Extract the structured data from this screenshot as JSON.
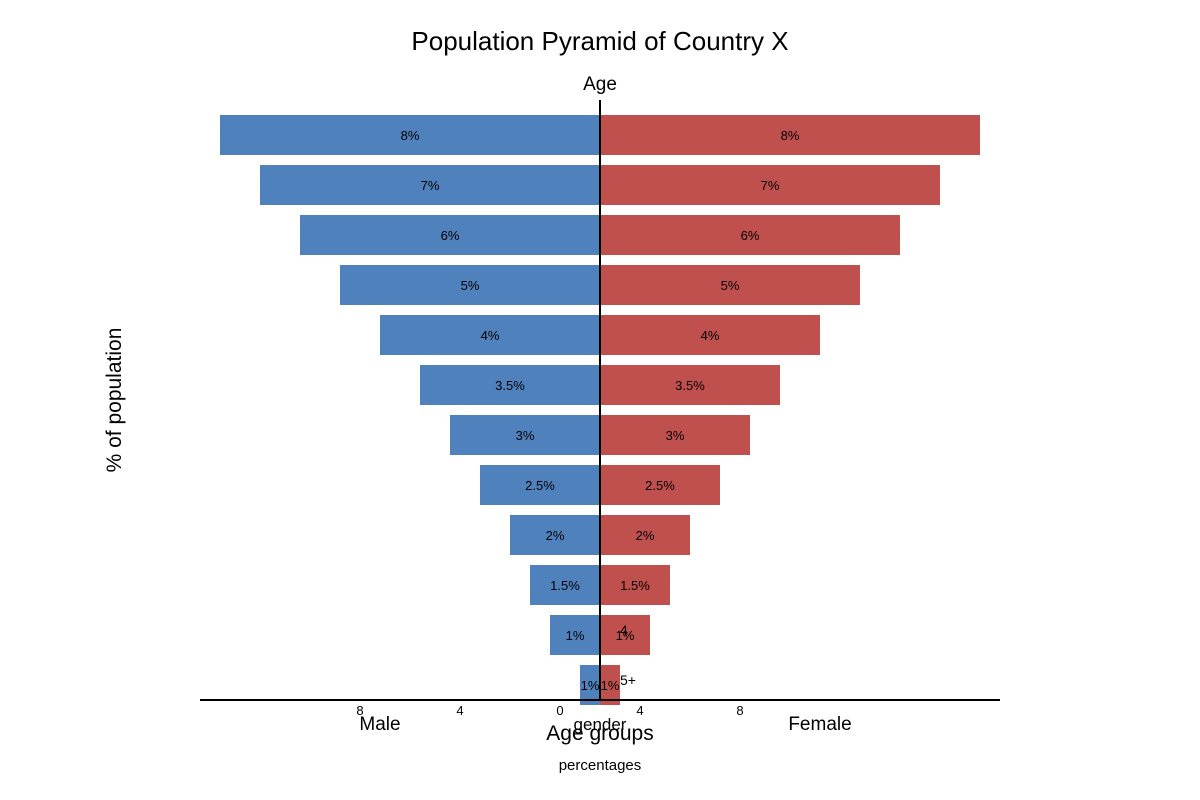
{
  "chart_data": {
    "type": "bar",
    "orientation": "horizontal",
    "title": "Population Pyramid of Country X",
    "center_axis_label": "Age",
    "ylabel": "% of population",
    "xlabel": "Age groups",
    "x_tick_labels": [
      "8",
      "4",
      "0",
      "4",
      "8"
    ],
    "legend_title": "gender",
    "bottom_caption": "percentages",
    "categories": [
      "",
      "",
      "",
      "",
      "",
      "",
      "",
      "",
      "",
      "",
      "4",
      "5+"
    ],
    "series": [
      {
        "name": "Male",
        "color": "#4f81bd",
        "values": [
          8,
          7,
          6,
          5,
          4,
          3.5,
          3,
          2.5,
          2,
          1.5,
          1,
          1
        ],
        "labels": [
          "8%",
          "7%",
          "6%",
          "5%",
          "4%",
          "3.5%",
          "3%",
          "2.5%",
          "2%",
          "1.5%",
          "1%",
          "1%"
        ],
        "drawn_extent": [
          9.5,
          8.5,
          7.5,
          6.5,
          5.5,
          4.5,
          3.75,
          3,
          2.25,
          1.75,
          1.25,
          0.5
        ]
      },
      {
        "name": "Female",
        "color": "#c0504d",
        "values": [
          8,
          7,
          6,
          5,
          4,
          3.5,
          3,
          2.5,
          2,
          1.5,
          1,
          1
        ],
        "labels": [
          "8%",
          "7%",
          "6%",
          "5%",
          "4%",
          "3.5%",
          "3%",
          "2.5%",
          "2%",
          "1.5%",
          "1%",
          "1%"
        ],
        "drawn_extent": [
          9.5,
          8.5,
          7.5,
          6.5,
          5.5,
          4.5,
          3.75,
          3,
          2.25,
          1.75,
          1.25,
          0.5
        ]
      }
    ],
    "xlim": [
      -10,
      10
    ],
    "grid": false
  }
}
